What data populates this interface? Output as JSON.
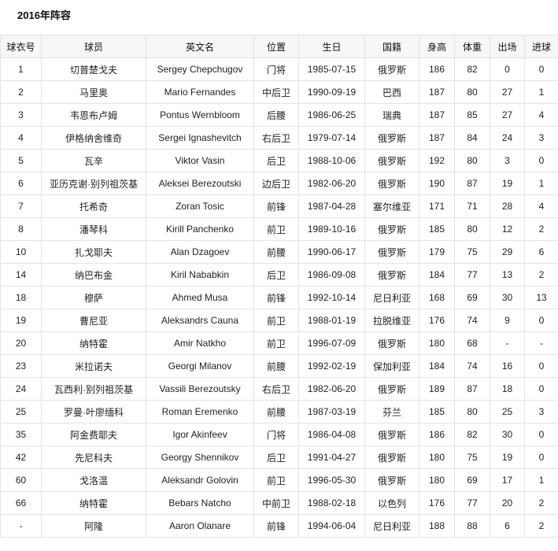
{
  "title": "2016年阵容",
  "table": {
    "headers": [
      "球衣号",
      "球员",
      "英文名",
      "位置",
      "生日",
      "国籍",
      "身高",
      "体重",
      "出场",
      "进球"
    ],
    "rows": [
      [
        "1",
        "切普楚戈夫",
        "Sergey Chepchugov",
        "门将",
        "1985-07-15",
        "俄罗斯",
        "186",
        "82",
        "0",
        "0"
      ],
      [
        "2",
        "马里奥",
        "Mario Fernandes",
        "中后卫",
        "1990-09-19",
        "巴西",
        "187",
        "80",
        "27",
        "1"
      ],
      [
        "3",
        "韦恩布卢姆",
        "Pontus Wernbloom",
        "后腰",
        "1986-06-25",
        "瑞典",
        "187",
        "85",
        "27",
        "4"
      ],
      [
        "4",
        "伊格纳舍维奇",
        "Sergei Ignashevitch",
        "右后卫",
        "1979-07-14",
        "俄罗斯",
        "187",
        "84",
        "24",
        "3"
      ],
      [
        "5",
        "瓦辛",
        "Viktor Vasin",
        "后卫",
        "1988-10-06",
        "俄罗斯",
        "192",
        "80",
        "3",
        "0"
      ],
      [
        "6",
        "亚历克谢·别列祖茨基",
        "Aleksei Berezoutski",
        "边后卫",
        "1982-06-20",
        "俄罗斯",
        "190",
        "87",
        "19",
        "1"
      ],
      [
        "7",
        "托希奇",
        "Zoran Tosic",
        "前锋",
        "1987-04-28",
        "塞尔维亚",
        "171",
        "71",
        "28",
        "4"
      ],
      [
        "8",
        "潘琴科",
        "Kirill Panchenko",
        "前卫",
        "1989-10-16",
        "俄罗斯",
        "185",
        "80",
        "12",
        "2"
      ],
      [
        "10",
        "扎戈耶夫",
        "Alan Dzagoev",
        "前腰",
        "1990-06-17",
        "俄罗斯",
        "179",
        "75",
        "29",
        "6"
      ],
      [
        "14",
        "纳巴布金",
        "Kiril Nababkin",
        "后卫",
        "1986-09-08",
        "俄罗斯",
        "184",
        "77",
        "13",
        "2"
      ],
      [
        "18",
        "穆萨",
        "Ahmed Musa",
        "前锋",
        "1992-10-14",
        "尼日利亚",
        "168",
        "69",
        "30",
        "13"
      ],
      [
        "19",
        "曹尼亚",
        "Aleksandrs Cauna",
        "前卫",
        "1988-01-19",
        "拉脱维亚",
        "176",
        "74",
        "9",
        "0"
      ],
      [
        "20",
        "纳特霍",
        "Amir Natkho",
        "前卫",
        "1996-07-09",
        "俄罗斯",
        "180",
        "68",
        "-",
        "-"
      ],
      [
        "23",
        "米拉诺夫",
        "Georgi Milanov",
        "前腰",
        "1992-02-19",
        "保加利亚",
        "184",
        "74",
        "16",
        "0"
      ],
      [
        "24",
        "瓦西利·别列祖茨基",
        "Vassili Berezoutsky",
        "右后卫",
        "1982-06-20",
        "俄罗斯",
        "189",
        "87",
        "18",
        "0"
      ],
      [
        "25",
        "罗曼·叶廖缅科",
        "Roman Eremenko",
        "前腰",
        "1987-03-19",
        "芬兰",
        "185",
        "80",
        "25",
        "3"
      ],
      [
        "35",
        "阿金费耶夫",
        "Igor Akinfeev",
        "门将",
        "1986-04-08",
        "俄罗斯",
        "186",
        "82",
        "30",
        "0"
      ],
      [
        "42",
        "先尼科夫",
        "Georgy Shennikov",
        "后卫",
        "1991-04-27",
        "俄罗斯",
        "180",
        "75",
        "19",
        "0"
      ],
      [
        "60",
        "戈洛温",
        "Aleksandr Golovin",
        "前卫",
        "1996-05-30",
        "俄罗斯",
        "180",
        "69",
        "17",
        "1"
      ],
      [
        "66",
        "纳特霍",
        "Bebars Natcho",
        "中前卫",
        "1988-02-18",
        "以色列",
        "176",
        "77",
        "20",
        "2"
      ],
      [
        "-",
        "阿隆",
        "Aaron Olanare",
        "前锋",
        "1994-06-04",
        "尼日利亚",
        "188",
        "88",
        "6",
        "2"
      ]
    ]
  }
}
